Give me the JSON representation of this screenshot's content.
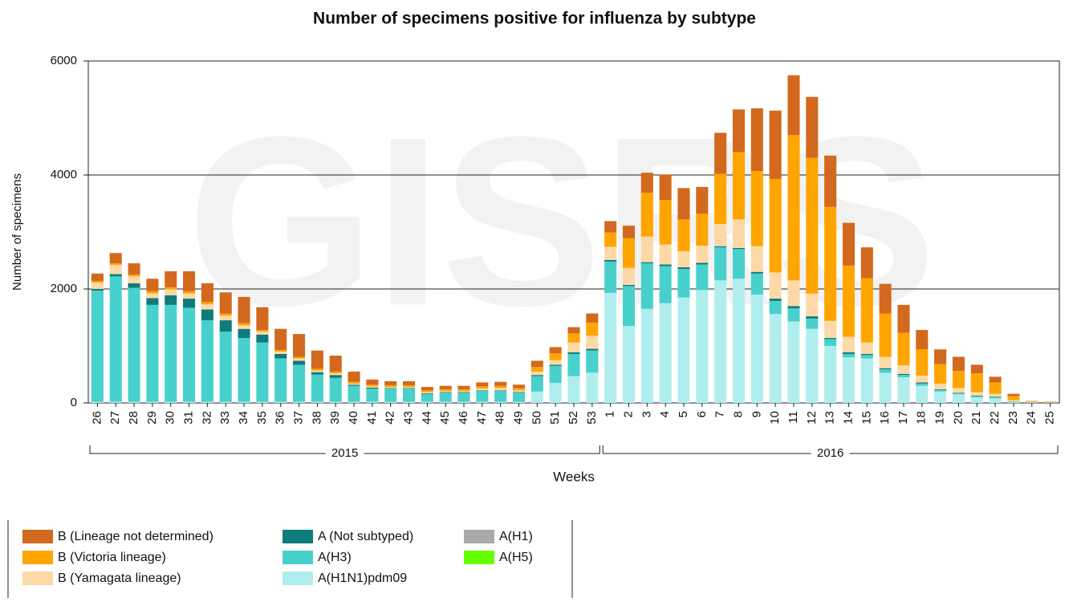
{
  "chart_data": {
    "type": "stacked-bar",
    "title": "Number of specimens positive for influenza by subtype",
    "watermark": "GISRS",
    "y_label": "Number of specimens",
    "x_label": "Weeks",
    "categories": [
      "26",
      "27",
      "28",
      "29",
      "30",
      "31",
      "32",
      "33",
      "34",
      "35",
      "36",
      "37",
      "38",
      "39",
      "40",
      "41",
      "42",
      "43",
      "44",
      "45",
      "46",
      "47",
      "48",
      "49",
      "50",
      "51",
      "52",
      "53",
      "1",
      "2",
      "3",
      "4",
      "5",
      "6",
      "7",
      "8",
      "9",
      "10",
      "11",
      "12",
      "13",
      "14",
      "15",
      "16",
      "17",
      "18",
      "19",
      "20",
      "21",
      "22",
      "23",
      "24",
      "25"
    ],
    "x_groups": [
      {
        "label": "2015",
        "count": 28
      },
      {
        "label": "2016",
        "count": 25
      }
    ],
    "ylim": [
      0,
      6000
    ],
    "yticks": [
      0,
      2000,
      4000,
      6000
    ],
    "grid": true,
    "series": [
      {
        "name": "B (Lineage not determined)",
        "color": "#d2691e",
        "values": [
          130,
          180,
          200,
          220,
          280,
          350,
          330,
          370,
          460,
          400,
          370,
          400,
          320,
          280,
          180,
          90,
          70,
          70,
          60,
          60,
          60,
          70,
          70,
          60,
          110,
          110,
          110,
          160,
          200,
          220,
          350,
          450,
          550,
          470,
          720,
          750,
          1100,
          1200,
          1050,
          1070,
          900,
          750,
          540,
          520,
          490,
          340,
          260,
          250,
          150,
          100,
          40,
          5,
          5
        ]
      },
      {
        "name": "B (Victoria lineage)",
        "color": "#ffa500",
        "values": [
          30,
          30,
          30,
          40,
          40,
          40,
          40,
          40,
          40,
          30,
          30,
          30,
          30,
          30,
          30,
          30,
          30,
          30,
          30,
          30,
          30,
          40,
          40,
          40,
          80,
          120,
          160,
          230,
          250,
          520,
          770,
          780,
          560,
          560,
          880,
          1180,
          1320,
          1640,
          2550,
          2380,
          2000,
          1250,
          1130,
          760,
          570,
          460,
          340,
          300,
          330,
          200,
          70,
          10,
          5
        ]
      },
      {
        "name": "B (Yamagata lineage)",
        "color": "#fdd9a8",
        "values": [
          110,
          160,
          120,
          80,
          100,
          90,
          90,
          80,
          60,
          50,
          40,
          40,
          30,
          30,
          20,
          20,
          20,
          20,
          20,
          20,
          20,
          30,
          40,
          30,
          60,
          80,
          170,
          230,
          230,
          300,
          450,
          350,
          280,
          300,
          390,
          500,
          450,
          460,
          450,
          400,
          300,
          270,
          200,
          200,
          150,
          120,
          100,
          80,
          60,
          50,
          20,
          5,
          5
        ]
      },
      {
        "name": "A (Not subtyped)",
        "color": "#0f7b7b",
        "values": [
          30,
          40,
          80,
          120,
          170,
          160,
          190,
          200,
          160,
          140,
          80,
          70,
          40,
          50,
          20,
          20,
          10,
          10,
          10,
          10,
          10,
          10,
          10,
          10,
          20,
          20,
          30,
          30,
          30,
          20,
          20,
          30,
          30,
          30,
          20,
          20,
          30,
          40,
          40,
          40,
          20,
          30,
          20,
          20,
          20,
          20,
          10,
          10,
          10,
          10,
          5,
          2,
          2
        ]
      },
      {
        "name": "A(H3)",
        "color": "#48d1cc",
        "values": [
          1950,
          2200,
          2000,
          1700,
          1700,
          1650,
          1430,
          1230,
          1120,
          1040,
          760,
          650,
          480,
          420,
          280,
          230,
          230,
          230,
          140,
          160,
          160,
          190,
          190,
          160,
          270,
          300,
          390,
          390,
          550,
          700,
          800,
          650,
          500,
          450,
          580,
          520,
          370,
          230,
          230,
          180,
          120,
          60,
          60,
          60,
          40,
          40,
          30,
          20,
          20,
          20,
          5,
          2,
          2
        ]
      },
      {
        "name": "A(H1N1)pdm09",
        "color": "#b0eeee",
        "values": [
          20,
          20,
          20,
          20,
          20,
          20,
          20,
          20,
          20,
          20,
          20,
          20,
          20,
          20,
          20,
          20,
          20,
          20,
          20,
          20,
          20,
          20,
          20,
          20,
          200,
          350,
          470,
          530,
          1930,
          1350,
          1650,
          1750,
          1850,
          1980,
          2150,
          2180,
          1900,
          1560,
          1430,
          1300,
          1000,
          800,
          780,
          530,
          450,
          300,
          200,
          150,
          100,
          80,
          20,
          10,
          5
        ]
      },
      {
        "name": "A(H1)",
        "color": "#a9a9a9",
        "values": [
          0,
          0,
          0,
          0,
          0,
          0,
          0,
          0,
          0,
          0,
          0,
          0,
          0,
          0,
          0,
          0,
          0,
          0,
          0,
          0,
          0,
          0,
          0,
          0,
          0,
          0,
          0,
          0,
          0,
          0,
          0,
          0,
          0,
          0,
          0,
          0,
          0,
          0,
          0,
          0,
          0,
          0,
          0,
          0,
          0,
          0,
          0,
          0,
          0,
          0,
          0,
          0,
          0
        ]
      },
      {
        "name": "A(H5)",
        "color": "#66ff00",
        "values": [
          0,
          0,
          0,
          0,
          0,
          0,
          0,
          0,
          0,
          0,
          0,
          0,
          0,
          0,
          0,
          0,
          0,
          0,
          0,
          0,
          0,
          0,
          0,
          0,
          0,
          0,
          0,
          0,
          0,
          0,
          0,
          0,
          0,
          0,
          0,
          0,
          0,
          0,
          0,
          0,
          0,
          0,
          0,
          0,
          0,
          0,
          0,
          0,
          0,
          0,
          0,
          0,
          0
        ]
      }
    ]
  }
}
